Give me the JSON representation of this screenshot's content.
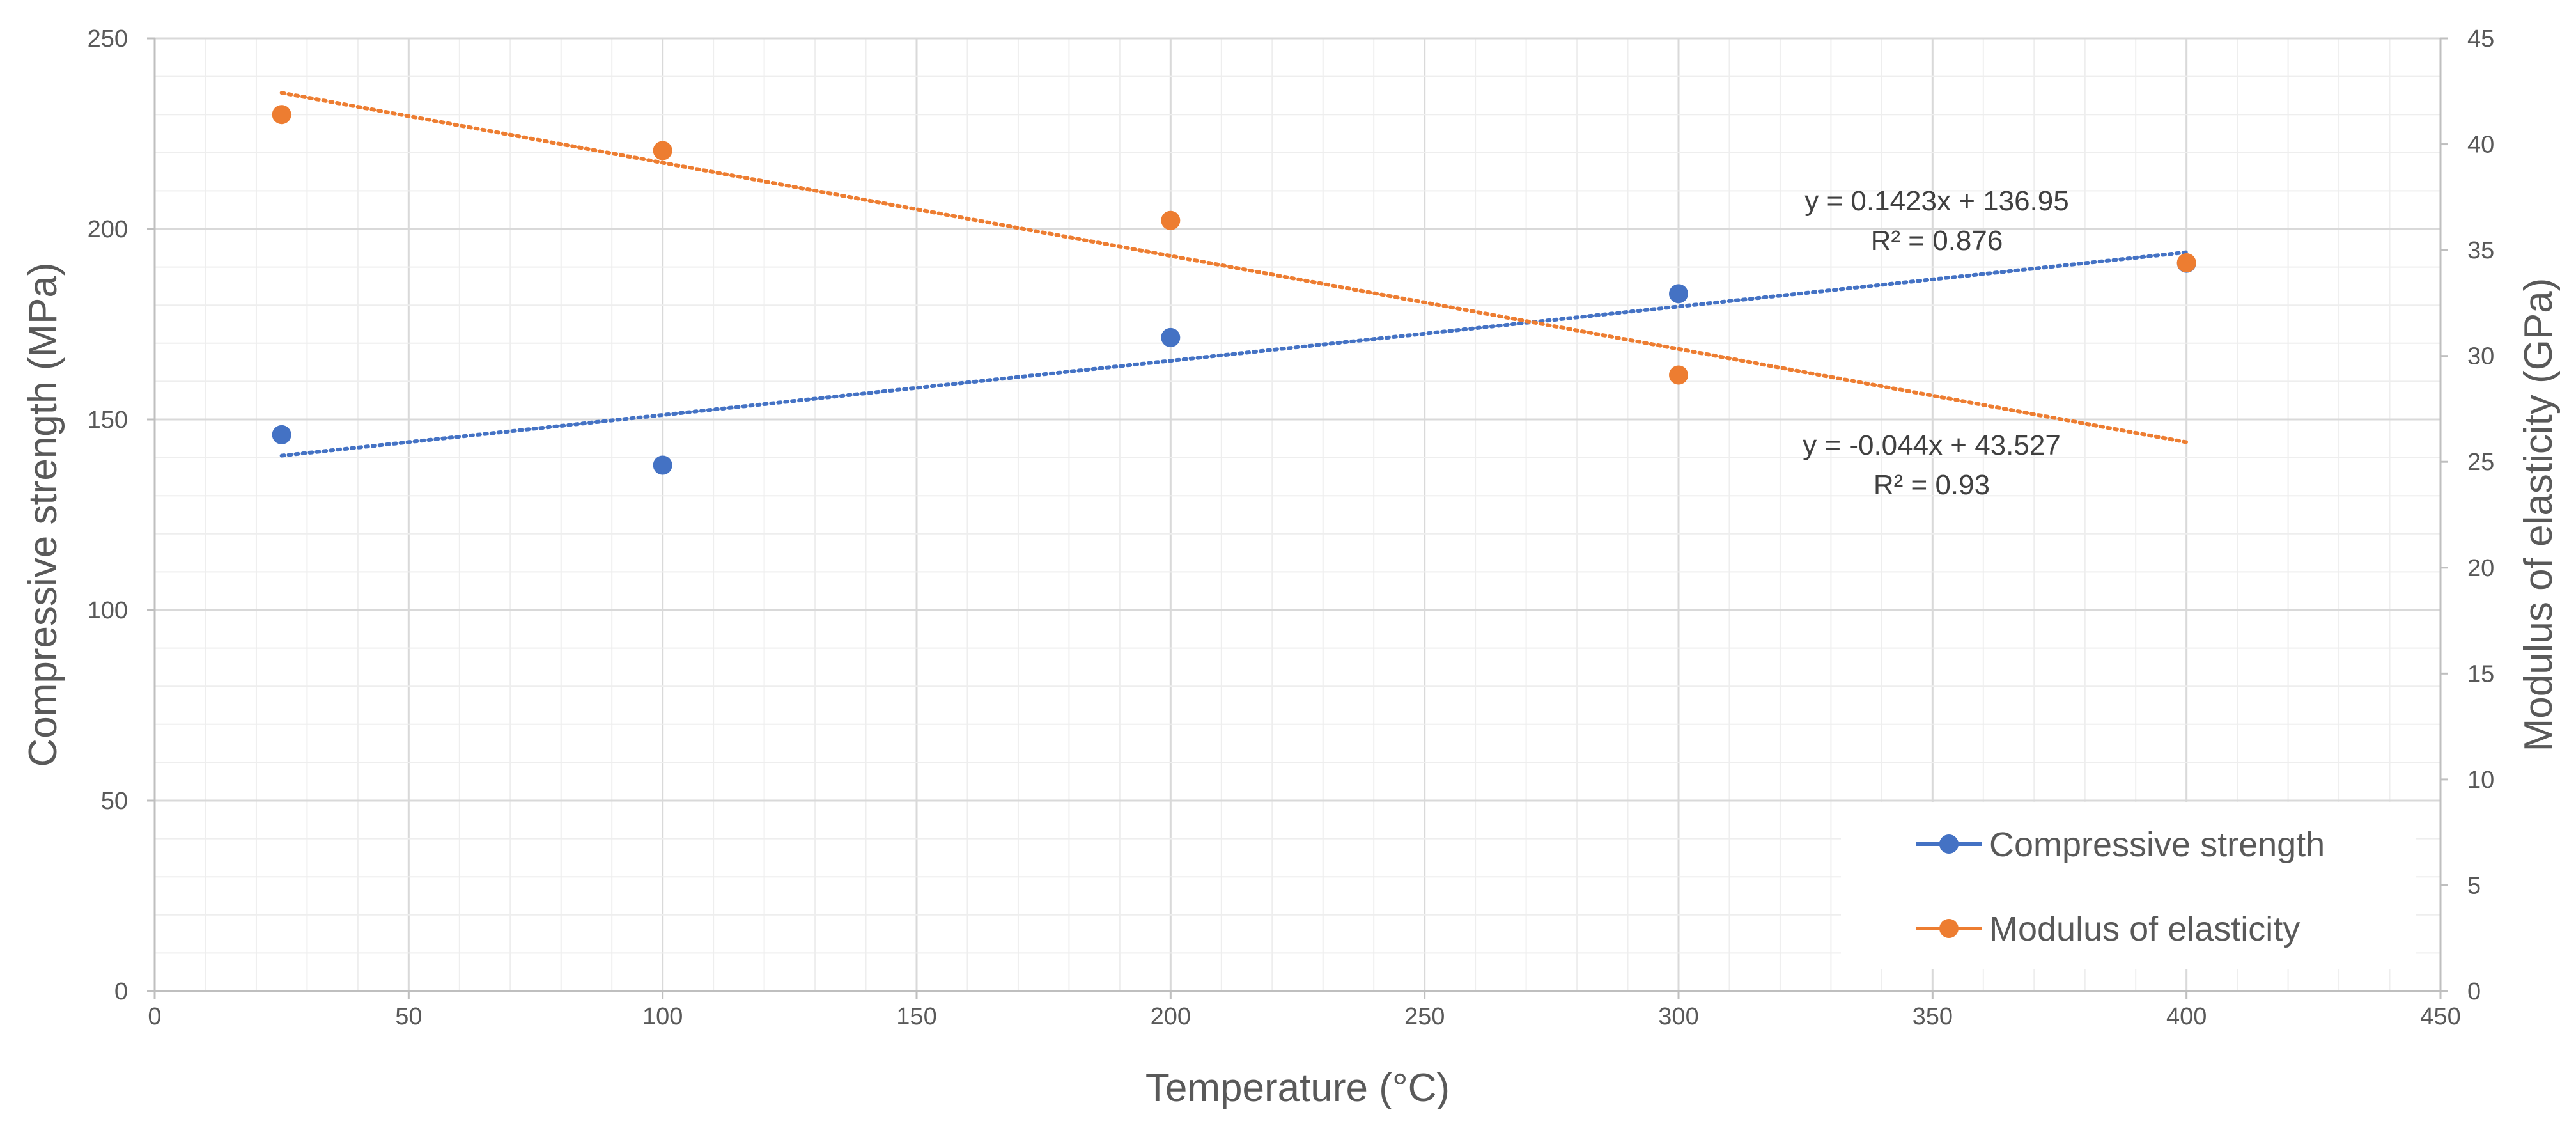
{
  "chart_data": {
    "type": "scatter",
    "title": "",
    "xlabel": "Temperature (°C)",
    "ylabel": "Compressive strength (MPa)",
    "y2label": "Modulus of elasticity (GPa)",
    "xlim": [
      0,
      450
    ],
    "ylim": [
      0,
      250
    ],
    "y2lim": [
      0,
      45
    ],
    "x_ticks": [
      0,
      50,
      100,
      150,
      200,
      250,
      300,
      350,
      400,
      450
    ],
    "y_ticks": [
      0,
      50,
      100,
      150,
      200,
      250
    ],
    "y2_ticks": [
      0,
      5,
      10,
      15,
      20,
      25,
      30,
      35,
      40,
      45
    ],
    "grid": true,
    "legend_position": "bottom-right",
    "series": [
      {
        "name": "Compressive strength",
        "axis": "left",
        "color": "#4472C4",
        "x": [
          25,
          100,
          200,
          300,
          400
        ],
        "y": [
          146,
          138,
          171.5,
          183,
          191
        ],
        "trendline": {
          "slope": 0.1423,
          "intercept": 136.95,
          "x_range": [
            25,
            400
          ],
          "equation": "y = 0.1423x + 136.95",
          "r2": "R² = 0.876"
        }
      },
      {
        "name": "Modulus of elasticity",
        "axis": "right",
        "color": "#ED7D31",
        "x": [
          25,
          100,
          200,
          300,
          400
        ],
        "y": [
          41.4,
          39.7,
          36.4,
          29.1,
          34.4
        ],
        "trendline": {
          "slope": -0.044,
          "intercept": 43.527,
          "x_range": [
            25,
            400
          ],
          "equation": "y = -0.044x + 43.527",
          "r2": "R² = 0.93"
        }
      }
    ]
  }
}
